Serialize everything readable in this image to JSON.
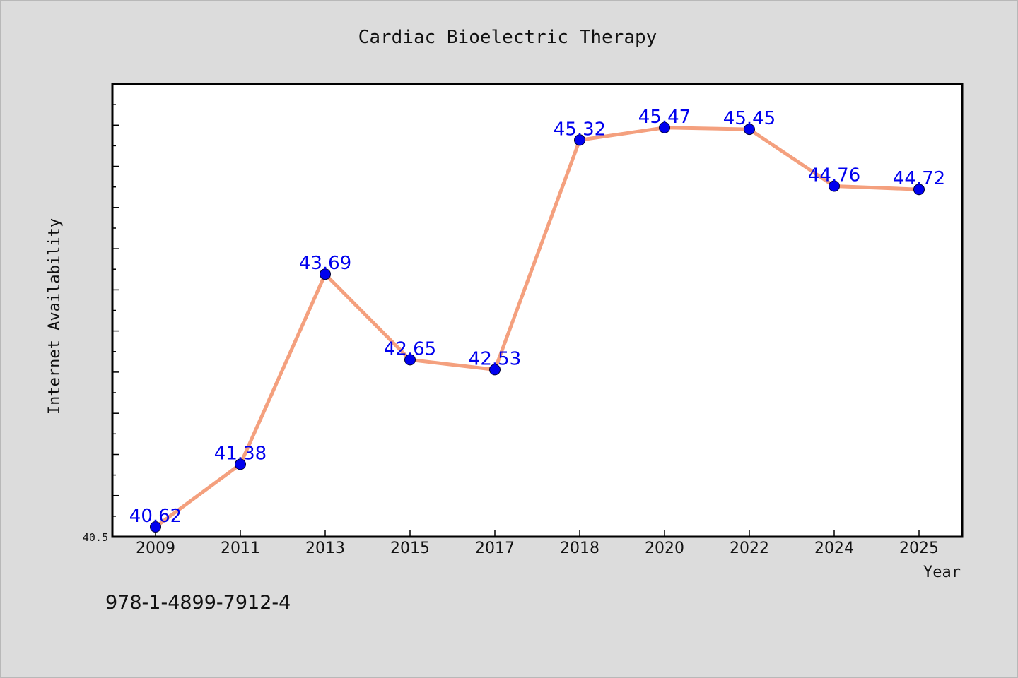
{
  "chart_data": {
    "type": "line",
    "title": "Cardiac Bioelectric Therapy",
    "xlabel": "Year",
    "ylabel": "Internet Availability",
    "categories": [
      "2009",
      "2011",
      "2013",
      "2015",
      "2017",
      "2018",
      "2020",
      "2022",
      "2024",
      "2025"
    ],
    "series": [
      {
        "values": [
          40.62,
          41.38,
          43.69,
          42.65,
          42.53,
          45.32,
          45.47,
          45.45,
          44.76,
          44.72
        ],
        "data_labels": [
          "40.62",
          "41.38",
          "43.69",
          "42.65",
          "42.53",
          "45.32",
          "45.47",
          "45.45",
          "44.76",
          "44.72"
        ]
      }
    ],
    "ylim": [
      40.5,
      46.0
    ],
    "yticks_labeled": [
      "40.5"
    ],
    "grid": false,
    "legend": false,
    "line_color": "#f4a07e",
    "marker_color": "#0000ee",
    "label_color": "#0000ee",
    "plot_background": "#ffffff",
    "figure_background": "#dcdcdc"
  },
  "footer": {
    "isbn": "978-1-4899-7912-4"
  }
}
